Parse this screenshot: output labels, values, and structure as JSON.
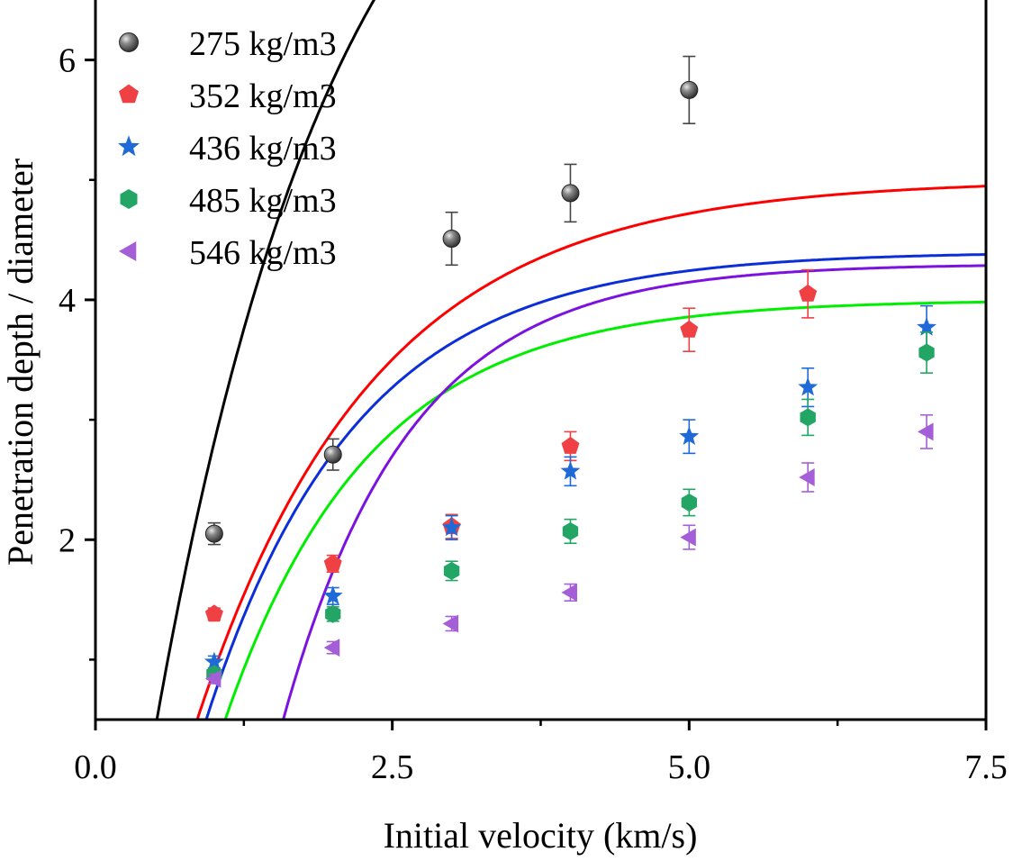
{
  "chart_data": {
    "type": "scatter",
    "title": "",
    "xlabel": "Initial velocity (km/s)",
    "ylabel": "Penetration depth / diameter",
    "xlim": [
      0,
      7.5
    ],
    "ylim": [
      0.5,
      6.5
    ],
    "xticks": [
      0.0,
      2.5,
      5.0,
      7.5
    ],
    "xtick_labels": [
      "0.0",
      "2.5",
      "5.0",
      "7.5"
    ],
    "xminor_ticks": [
      1.25,
      3.75,
      6.25
    ],
    "yticks": [
      2,
      4,
      6
    ],
    "ytick_labels": [
      "2",
      "4",
      "6"
    ],
    "yminor_ticks": [
      1,
      3,
      5
    ],
    "legend_position": "top-left",
    "series": [
      {
        "name": "275 kg/m3",
        "marker": "sphere",
        "color": "#555555",
        "fit_color": "#000000",
        "x": [
          1,
          2,
          3,
          4,
          5
        ],
        "y": [
          2.05,
          2.71,
          4.51,
          4.89,
          5.75
        ],
        "err": [
          0.09,
          0.13,
          0.22,
          0.24,
          0.28
        ],
        "fit": {
          "A": 9.2,
          "B": 0.64,
          "x0": 0.43
        }
      },
      {
        "name": "352 kg/m3",
        "marker": "pentagon",
        "color": "#ef4043",
        "fit_color": "#ff0000",
        "x": [
          1,
          2,
          3,
          4,
          5,
          6
        ],
        "y": [
          1.38,
          1.8,
          2.11,
          2.78,
          3.75,
          4.05
        ],
        "err": [
          0.05,
          0.07,
          0.1,
          0.12,
          0.18,
          0.2
        ],
        "fit": {
          "A": 5.0,
          "B": 0.67,
          "x0": 0.7
        }
      },
      {
        "name": "436 kg/m3",
        "marker": "star",
        "color": "#1f6ad6",
        "fit_color": "#0b2ed9",
        "x": [
          1,
          2,
          3,
          4,
          5,
          6,
          7
        ],
        "y": [
          0.98,
          1.53,
          2.1,
          2.57,
          2.86,
          3.27,
          3.77
        ],
        "err": [
          0.05,
          0.07,
          0.1,
          0.12,
          0.14,
          0.16,
          0.18
        ],
        "fit": {
          "A": 4.4,
          "B": 0.79,
          "x0": 0.78
        }
      },
      {
        "name": "485 kg/m3",
        "marker": "hexagon",
        "color": "#22a565",
        "fit_color": "#00ee00",
        "x": [
          1,
          2,
          3,
          4,
          5,
          6,
          7
        ],
        "y": [
          0.88,
          1.38,
          1.74,
          2.07,
          2.31,
          3.02,
          3.56
        ],
        "err": [
          0.04,
          0.06,
          0.08,
          0.1,
          0.11,
          0.15,
          0.17
        ],
        "fit": {
          "A": 4.0,
          "B": 0.82,
          "x0": 0.93
        }
      },
      {
        "name": "546 kg/m3",
        "marker": "triangle-left",
        "color": "#a45fd8",
        "fit_color": "#7b12e0",
        "x": [
          1,
          2,
          3,
          4,
          5,
          6,
          7
        ],
        "y": [
          0.84,
          1.1,
          1.3,
          1.56,
          2.02,
          2.52,
          2.9
        ],
        "err": [
          0.04,
          0.05,
          0.06,
          0.07,
          0.1,
          0.12,
          0.14
        ],
        "fit": {
          "A": 4.3,
          "B": 0.94,
          "x0": 1.45
        }
      }
    ]
  }
}
